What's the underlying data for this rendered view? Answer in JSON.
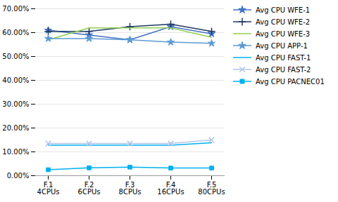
{
  "chart_data": {
    "type": "line",
    "categories": [
      "F.1\n4CPUs",
      "F.2\n6CPUs",
      "F.3\n8CPUs",
      "F.4\n16CPUs",
      "F.5\n80CPUs"
    ],
    "series": [
      {
        "name": "Avg CPU WFE-1",
        "color": "#4472C4",
        "marker": "star",
        "line_style": "solid",
        "values": [
          0.61,
          0.59,
          0.57,
          0.625,
          0.595
        ]
      },
      {
        "name": "Avg CPU WFE-2",
        "color": "#1F3864",
        "marker": "plus",
        "line_style": "solid",
        "values": [
          0.605,
          0.605,
          0.625,
          0.635,
          0.605
        ]
      },
      {
        "name": "Avg CPU WFE-3",
        "color": "#92D050",
        "marker": "none",
        "line_style": "solid",
        "values": [
          0.57,
          0.62,
          0.62,
          0.62,
          0.58
        ]
      },
      {
        "name": "Avg CPU APP-1",
        "color": "#5B9BD5",
        "marker": "star",
        "line_style": "solid",
        "values": [
          0.575,
          0.575,
          0.57,
          0.56,
          0.555
        ]
      },
      {
        "name": "Avg CPU FAST-1",
        "color": "#00B0F0",
        "marker": "none",
        "line_style": "solid",
        "values": [
          0.128,
          0.128,
          0.128,
          0.128,
          0.138
        ]
      },
      {
        "name": "Avg CPU FAST-2",
        "color": "#B4C6E7",
        "marker": "x",
        "line_style": "solid",
        "values": [
          0.135,
          0.135,
          0.135,
          0.135,
          0.15
        ]
      },
      {
        "name": "Avg CPU PACNEC01",
        "color": "#00B0F0",
        "marker": "square",
        "line_style": "solid",
        "values": [
          0.025,
          0.033,
          0.036,
          0.032,
          0.032
        ]
      }
    ],
    "ylim": [
      0.0,
      0.7
    ],
    "yticks": [
      {
        "value": 0.0,
        "label": "0.00%"
      },
      {
        "value": 0.1,
        "label": "10.00%"
      },
      {
        "value": 0.2,
        "label": "20.00%"
      },
      {
        "value": 0.3,
        "label": "30.00%"
      },
      {
        "value": 0.4,
        "label": "40.00%"
      },
      {
        "value": 0.5,
        "label": "50.00%"
      },
      {
        "value": 0.6,
        "label": "60.00%"
      },
      {
        "value": 0.7,
        "label": "70.00%"
      }
    ],
    "grid": true,
    "legend": "right"
  }
}
